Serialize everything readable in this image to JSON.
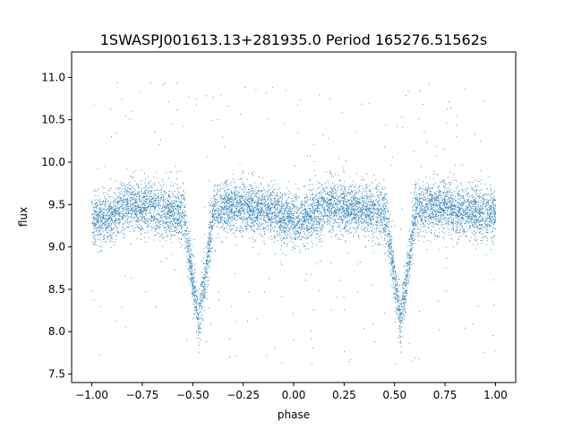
{
  "chart_data": {
    "type": "scatter",
    "title": "1SWASPJ001613.13+281935.0 Period 165276.51562s",
    "xlabel": "phase",
    "ylabel": "flux",
    "xlim": [
      -1.1,
      1.1
    ],
    "ylim": [
      7.4,
      11.3
    ],
    "xticks": [
      -1.0,
      -0.75,
      -0.5,
      -0.25,
      0.0,
      0.25,
      0.5,
      0.75,
      1.0
    ],
    "xtick_labels": [
      "−1.00",
      "−0.75",
      "−0.50",
      "−0.25",
      "0.00",
      "0.25",
      "0.50",
      "0.75",
      "1.00"
    ],
    "yticks": [
      7.5,
      8.0,
      8.5,
      9.0,
      9.5,
      10.0,
      10.5,
      11.0
    ],
    "ytick_labels": [
      "7.5",
      "8.0",
      "8.5",
      "9.0",
      "9.5",
      "10.0",
      "10.5",
      "11.0"
    ],
    "grid": false,
    "legend": "none",
    "marker_color": "#1f77b4",
    "series": [
      {
        "x_range": [
          -1.0,
          1.0
        ],
        "baseline_flux": 9.4,
        "primary_minima": [
          {
            "phase": -0.47,
            "flux": 8.1
          },
          {
            "phase": 0.53,
            "flux": 8.1
          }
        ],
        "secondary_minima": [
          {
            "phase": 0.03,
            "flux": 9.3
          },
          {
            "phase": -0.97,
            "flux": 9.3
          }
        ],
        "secondary_minimum_flux": 9.3,
        "scatter_sigma": 0.15,
        "outlier_range": [
          7.6,
          11.0
        ]
      }
    ]
  }
}
